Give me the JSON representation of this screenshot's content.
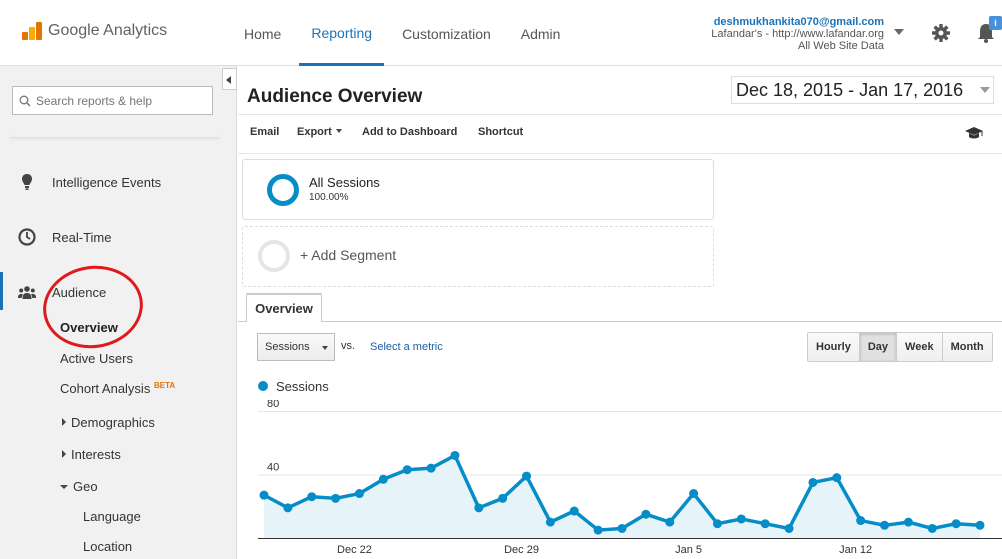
{
  "header": {
    "logo_text": "Google Analytics",
    "nav": [
      {
        "label": "Home",
        "active": false
      },
      {
        "label": "Reporting",
        "active": true
      },
      {
        "label": "Customization",
        "active": false
      },
      {
        "label": "Admin",
        "active": false
      }
    ],
    "account": {
      "email": "deshmukhankita070@gmail.com",
      "property": "Lafandar's - http://www.lafandar.org",
      "view": "All Web Site Data"
    },
    "notification_badge": "i"
  },
  "sidebar": {
    "search_placeholder": "Search reports & help",
    "items": [
      {
        "label": "Intelligence Events",
        "icon": "lightbulb-icon"
      },
      {
        "label": "Real-Time",
        "icon": "clock-icon"
      },
      {
        "label": "Audience",
        "icon": "people-icon"
      }
    ],
    "audience_sub": {
      "overview": "Overview",
      "active_users": "Active Users",
      "cohort": "Cohort Analysis",
      "beta": "BETA",
      "demographics": "Demographics",
      "interests": "Interests",
      "geo": "Geo",
      "language": "Language",
      "location": "Location"
    }
  },
  "main": {
    "title": "Audience Overview",
    "date_range": "Dec 18, 2015 - Jan 17, 2016",
    "actions": {
      "email": "Email",
      "export": "Export",
      "add_dashboard": "Add to Dashboard",
      "shortcut": "Shortcut"
    },
    "segment": {
      "name": "All Sessions",
      "percent": "100.00%"
    },
    "add_segment": "+ Add Segment",
    "tab": "Overview",
    "metric": "Sessions",
    "vs": "vs.",
    "select_metric": "Select a metric",
    "granularity": [
      {
        "label": "Hourly",
        "active": false
      },
      {
        "label": "Day",
        "active": true
      },
      {
        "label": "Week",
        "active": false
      },
      {
        "label": "Month",
        "active": false
      }
    ],
    "legend": "Sessions"
  },
  "colors": {
    "accent": "#1a73b8",
    "series": "#058dc7",
    "annotation": "#e0191f"
  },
  "chart_data": {
    "type": "area",
    "series": [
      {
        "name": "Sessions",
        "values": [
          27,
          19,
          26,
          25,
          28,
          37,
          43,
          44,
          52,
          19,
          25,
          39,
          10,
          17,
          5,
          6,
          15,
          10,
          28,
          9,
          12,
          9,
          6,
          35,
          38,
          11,
          8,
          10,
          6,
          9,
          8
        ]
      }
    ],
    "x_labels": [
      {
        "label": "Dec 22",
        "index": 4
      },
      {
        "label": "Dec 29",
        "index": 11
      },
      {
        "label": "Jan 5",
        "index": 18
      },
      {
        "label": "Jan 12",
        "index": 25
      }
    ],
    "y_ticks": [
      "80",
      "40"
    ],
    "ylim": [
      0,
      80
    ]
  }
}
